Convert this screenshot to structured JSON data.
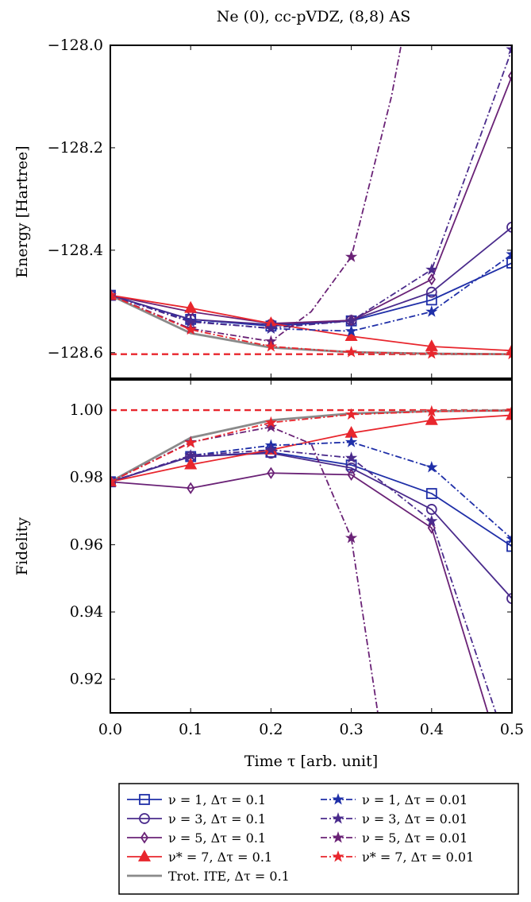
{
  "figure": {
    "title": "Ne (0), cc-pVDZ, (8,8) AS"
  },
  "colors": {
    "blue": "#1f2fa8",
    "purple1": "#4a2b8c",
    "purple2": "#6a2276",
    "red": "#e8262d",
    "gray": "#8a8a8a",
    "refline": "#e8262d"
  },
  "chart_data": [
    {
      "type": "line",
      "panel": "energy",
      "ylabel": "Energy [Hartree]",
      "xlabel": "",
      "xlim": [
        0.0,
        0.5
      ],
      "ylim": [
        -128.65,
        -128.0
      ],
      "yticks": [
        -128.6,
        -128.4,
        -128.2,
        -128.0
      ],
      "ytick_labels": [
        "−128.6",
        "−128.4",
        "−128.2",
        "−128.0"
      ],
      "xticks": [
        0.0,
        0.1,
        0.2,
        0.3,
        0.4,
        0.5
      ],
      "reference": -128.603,
      "series": [
        {
          "name": "ν = 1, Δτ = 0.1",
          "color": "#1f2fa8",
          "dash": "solid",
          "marker": "square",
          "x": [
            0,
            0.1,
            0.2,
            0.3,
            0.4,
            0.5
          ],
          "y": [
            -128.488,
            -128.535,
            -128.548,
            -128.538,
            -128.497,
            -128.425
          ]
        },
        {
          "name": "ν = 3, Δτ = 0.1",
          "color": "#4a2b8c",
          "dash": "solid",
          "marker": "circle",
          "x": [
            0,
            0.1,
            0.2,
            0.3,
            0.4,
            0.5
          ],
          "y": [
            -128.488,
            -128.535,
            -128.545,
            -128.537,
            -128.482,
            -128.355
          ]
        },
        {
          "name": "ν = 5, Δτ = 0.1",
          "color": "#6a2276",
          "dash": "solid",
          "marker": "diamond",
          "x": [
            0,
            0.1,
            0.2,
            0.3,
            0.4,
            0.5
          ],
          "y": [
            -128.488,
            -128.52,
            -128.543,
            -128.537,
            -128.457,
            -128.06
          ]
        },
        {
          "name": "ν* = 7, Δτ = 0.1",
          "color": "#e8262d",
          "dash": "solid",
          "marker": "triangle",
          "x": [
            0,
            0.1,
            0.2,
            0.3,
            0.4,
            0.5
          ],
          "y": [
            -128.488,
            -128.513,
            -128.543,
            -128.568,
            -128.588,
            -128.596
          ]
        },
        {
          "name": "Trot. ITE, Δτ = 0.1",
          "color": "#8a8a8a",
          "dash": "solid",
          "marker": "none",
          "x": [
            0,
            0.1,
            0.2,
            0.3,
            0.4,
            0.5
          ],
          "y": [
            -128.488,
            -128.562,
            -128.59,
            -128.599,
            -128.602,
            -128.603
          ]
        },
        {
          "name": "ν = 1, Δτ = 0.01",
          "color": "#1f2fa8",
          "dash": "dashdot",
          "marker": "star",
          "x": [
            0,
            0.1,
            0.2,
            0.3,
            0.4,
            0.5
          ],
          "y": [
            -128.488,
            -128.538,
            -128.553,
            -128.558,
            -128.52,
            -128.408
          ]
        },
        {
          "name": "ν = 3, Δτ = 0.01",
          "color": "#4a2b8c",
          "dash": "dashdot",
          "marker": "star",
          "x": [
            0,
            0.1,
            0.2,
            0.3,
            0.4,
            0.5
          ],
          "y": [
            -128.488,
            -128.54,
            -128.552,
            -128.538,
            -128.438,
            -128.008
          ]
        },
        {
          "name": "ν = 5, Δτ = 0.01",
          "color": "#6a2276",
          "dash": "dashdot",
          "marker": "star",
          "x": [
            0,
            0.1,
            0.2,
            0.25,
            0.3,
            0.35,
            0.362
          ],
          "y": [
            -128.488,
            -128.553,
            -128.578,
            -128.52,
            -128.413,
            -128.1,
            -128.0
          ]
        },
        {
          "name": "ν* = 7, Δτ = 0.01",
          "color": "#e8262d",
          "dash": "dashdot",
          "marker": "star",
          "x": [
            0,
            0.1,
            0.2,
            0.3,
            0.4,
            0.5
          ],
          "y": [
            -128.488,
            -128.555,
            -128.588,
            -128.599,
            -128.602,
            -128.603
          ]
        }
      ]
    },
    {
      "type": "line",
      "panel": "fidelity",
      "ylabel": "Fidelity",
      "xlabel": "Time τ [arb. unit]",
      "xlim": [
        0.0,
        0.5
      ],
      "ylim": [
        0.91,
        1.009
      ],
      "yticks": [
        0.92,
        0.94,
        0.96,
        0.98,
        1.0
      ],
      "ytick_labels": [
        "0.92",
        "0.94",
        "0.96",
        "0.98",
        "1.00"
      ],
      "xticks": [
        0.0,
        0.1,
        0.2,
        0.3,
        0.4,
        0.5
      ],
      "xtick_labels": [
        "0.0",
        "0.1",
        "0.2",
        "0.3",
        "0.4",
        "0.5"
      ],
      "reference": 1.0,
      "series": [
        {
          "name": "ν = 1, Δτ = 0.1",
          "color": "#1f2fa8",
          "dash": "solid",
          "marker": "square",
          "x": [
            0,
            0.1,
            0.2,
            0.3,
            0.4,
            0.5
          ],
          "y": [
            0.9787,
            0.9862,
            0.9875,
            0.9837,
            0.9752,
            0.9595
          ]
        },
        {
          "name": "ν = 3, Δτ = 0.1",
          "color": "#4a2b8c",
          "dash": "solid",
          "marker": "circle",
          "x": [
            0,
            0.1,
            0.2,
            0.3,
            0.4,
            0.5
          ],
          "y": [
            0.9787,
            0.9862,
            0.9872,
            0.9828,
            0.9705,
            0.944
          ]
        },
        {
          "name": "ν = 5, Δτ = 0.1",
          "color": "#6a2276",
          "dash": "solid",
          "marker": "diamond",
          "x": [
            0,
            0.1,
            0.2,
            0.3,
            0.4,
            0.47
          ],
          "y": [
            0.9787,
            0.9768,
            0.9813,
            0.9808,
            0.965,
            0.91
          ]
        },
        {
          "name": "ν* = 7, Δτ = 0.1",
          "color": "#e8262d",
          "dash": "solid",
          "marker": "triangle",
          "x": [
            0,
            0.1,
            0.2,
            0.3,
            0.4,
            0.5
          ],
          "y": [
            0.9787,
            0.9838,
            0.9882,
            0.9932,
            0.997,
            0.9985
          ]
        },
        {
          "name": "Trot. ITE, Δτ = 0.1",
          "color": "#8a8a8a",
          "dash": "solid",
          "marker": "none",
          "x": [
            0,
            0.1,
            0.2,
            0.3,
            0.4,
            0.5
          ],
          "y": [
            0.9787,
            0.9918,
            0.997,
            0.999,
            0.9997,
            0.9999
          ]
        },
        {
          "name": "ν = 1, Δτ = 0.01",
          "color": "#1f2fa8",
          "dash": "dashdot",
          "marker": "star",
          "x": [
            0,
            0.1,
            0.2,
            0.3,
            0.4,
            0.5
          ],
          "y": [
            0.9787,
            0.9865,
            0.9895,
            0.9905,
            0.983,
            0.9617
          ]
        },
        {
          "name": "ν = 3, Δτ = 0.01",
          "color": "#4a2b8c",
          "dash": "dashdot",
          "marker": "star",
          "x": [
            0,
            0.1,
            0.2,
            0.3,
            0.4,
            0.48
          ],
          "y": [
            0.9787,
            0.9865,
            0.9882,
            0.9858,
            0.967,
            0.91
          ]
        },
        {
          "name": "ν = 5, Δτ = 0.01",
          "color": "#6a2276",
          "dash": "dashdot",
          "marker": "star",
          "x": [
            0,
            0.1,
            0.2,
            0.25,
            0.3,
            0.333
          ],
          "y": [
            0.9787,
            0.9905,
            0.995,
            0.99,
            0.962,
            0.91
          ]
        },
        {
          "name": "ν* = 7, Δτ = 0.01",
          "color": "#e8262d",
          "dash": "dashdot",
          "marker": "star",
          "x": [
            0,
            0.1,
            0.2,
            0.3,
            0.4,
            0.5
          ],
          "y": [
            0.9787,
            0.9903,
            0.9963,
            0.9987,
            0.9996,
            0.9999
          ]
        }
      ]
    }
  ],
  "legend": {
    "placement": "bottom",
    "entries": [
      {
        "label": "ν = 1, Δτ = 0.1",
        "series": 0
      },
      {
        "label": "ν = 1, Δτ = 0.01",
        "series": 5
      },
      {
        "label": "ν = 3, Δτ = 0.1",
        "series": 1
      },
      {
        "label": "ν = 3, Δτ = 0.01",
        "series": 6
      },
      {
        "label": "ν = 5, Δτ = 0.1",
        "series": 2
      },
      {
        "label": "ν = 5, Δτ = 0.01",
        "series": 7
      },
      {
        "label": "ν* = 7, Δτ = 0.1",
        "series": 3
      },
      {
        "label": "ν* = 7, Δτ = 0.01",
        "series": 8
      },
      {
        "label": "Trot. ITE, Δτ = 0.1",
        "series": 4
      }
    ]
  }
}
